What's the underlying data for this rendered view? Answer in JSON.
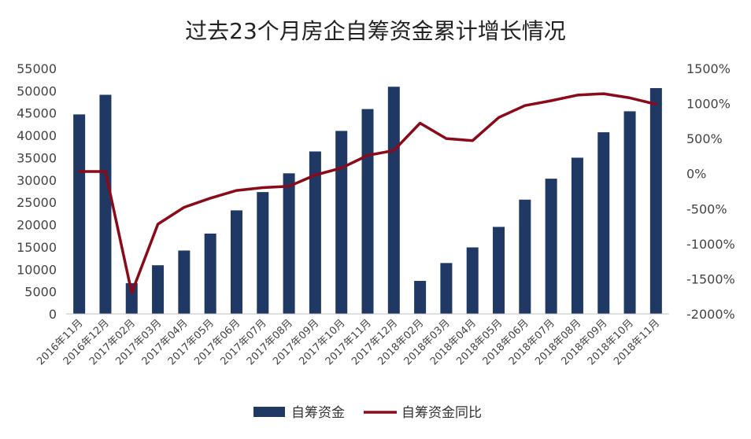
{
  "chart_data": {
    "type": "bar",
    "title": "过去23个月房企自筹资金累计增长情况",
    "categories": [
      "2016年11月",
      "2016年12月",
      "2017年02月",
      "2017年03月",
      "2017年04月",
      "2017年05月",
      "2017年06月",
      "2017年07月",
      "2017年08月",
      "2017年09月",
      "2017年10月",
      "2017年11月",
      "2017年12月",
      "2018年02月",
      "2018年03月",
      "2018年04月",
      "2018年05月",
      "2018年06月",
      "2018年07月",
      "2018年08月",
      "2018年09月",
      "2018年10月",
      "2018年11月"
    ],
    "series": [
      {
        "name": "自筹资金",
        "type": "bar",
        "axis": "left",
        "color": "#1F3864",
        "values": [
          44700,
          49100,
          6900,
          10900,
          14200,
          18000,
          23200,
          27300,
          31500,
          36400,
          41000,
          45900,
          50900,
          7400,
          11400,
          14900,
          19500,
          25600,
          30300,
          35000,
          40700,
          45400,
          50600
        ]
      },
      {
        "name": "自筹资金同比",
        "type": "line",
        "axis": "right",
        "color": "#8B0A1A",
        "values": [
          30,
          30,
          -1700,
          -720,
          -480,
          -350,
          -240,
          -200,
          -180,
          -20,
          80,
          260,
          330,
          720,
          500,
          470,
          800,
          970,
          1040,
          1120,
          1140,
          1080,
          990
        ]
      }
    ],
    "y_left": {
      "min": 0,
      "max": 55000,
      "ticks": [
        "0",
        "5000",
        "10000",
        "15000",
        "20000",
        "25000",
        "30000",
        "35000",
        "40000",
        "45000",
        "50000",
        "55000"
      ]
    },
    "y_right": {
      "min": -2000,
      "max": 1500,
      "ticks": [
        "-2000%",
        "-1500%",
        "-1000%",
        "-500%",
        "0%",
        "500%",
        "1000%",
        "1500%"
      ]
    },
    "grid": false,
    "legend": "bottom"
  }
}
